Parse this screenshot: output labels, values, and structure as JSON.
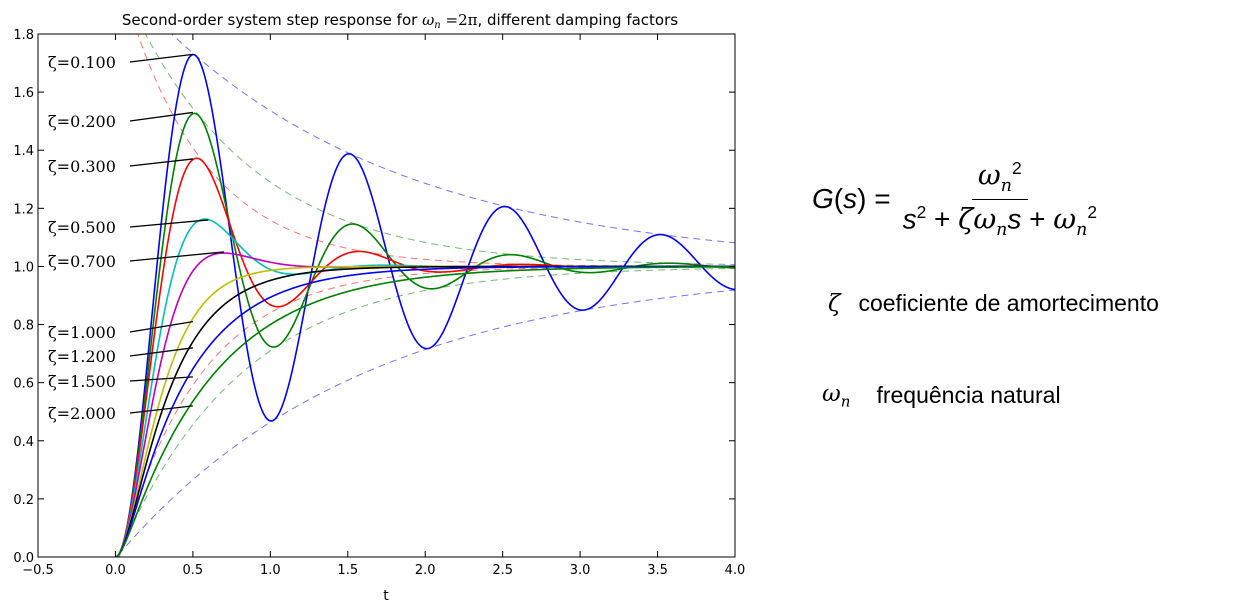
{
  "chart_data": {
    "type": "line",
    "title": "Second-order system step response for ωn = 2π, different damping factors",
    "title_parts": {
      "prefix": "Second-order system step response for ",
      "omega": "ω",
      "sub": "n",
      "eq": " =2π",
      "suffix": ", different damping factors"
    },
    "xlabel": "t",
    "ylabel": "",
    "xlim": [
      -0.5,
      4.0
    ],
    "ylim": [
      0.0,
      1.8
    ],
    "x_ticks": [
      "−0.5",
      "0.0",
      "0.5",
      "1.0",
      "1.5",
      "2.0",
      "2.5",
      "3.0",
      "3.5",
      "4.0"
    ],
    "y_ticks": [
      "0.0",
      "0.2",
      "0.4",
      "0.6",
      "0.8",
      "1.0",
      "1.2",
      "1.4",
      "1.6",
      "1.8"
    ],
    "grid": false,
    "omega_n": 6.283185,
    "series": [
      {
        "label": "ζ=0.100",
        "zeta": 0.1,
        "color": "#0000ff",
        "label_value": [
          0.5,
          1.73
        ]
      },
      {
        "label": "ζ=0.200",
        "zeta": 0.2,
        "color": "#008000",
        "label_value": [
          0.5,
          1.53
        ]
      },
      {
        "label": "ζ=0.300",
        "zeta": 0.3,
        "color": "#ff0000",
        "label_value": [
          0.5,
          1.37
        ]
      },
      {
        "label": "ζ=0.500",
        "zeta": 0.5,
        "color": "#00bfbf",
        "label_value": [
          0.6,
          1.16
        ]
      },
      {
        "label": "ζ=0.700",
        "zeta": 0.7,
        "color": "#bf00bf",
        "label_value": [
          0.7,
          1.05
        ]
      },
      {
        "label": "ζ=1.000",
        "zeta": 1.0,
        "color": "#bfbf00",
        "label_value": [
          0.5,
          0.81
        ]
      },
      {
        "label": "ζ=1.200",
        "zeta": 1.2,
        "color": "#000000",
        "label_value": [
          0.5,
          0.72
        ]
      },
      {
        "label": "ζ=1.500",
        "zeta": 1.5,
        "color": "#0000ff",
        "label_value": [
          0.5,
          0.62
        ]
      },
      {
        "label": "ζ=2.000",
        "zeta": 2.0,
        "color": "#008000",
        "label_value": [
          0.5,
          0.52
        ]
      }
    ],
    "envelopes": [
      {
        "zeta": 0.1,
        "color": "#0000ff"
      },
      {
        "zeta": 0.2,
        "color": "#008000"
      },
      {
        "zeta": 0.3,
        "color": "#ff0000"
      }
    ]
  },
  "formula": {
    "lhs": "G(s) =",
    "num_base": "ω",
    "num_sub": "n",
    "num_sup": "2",
    "den_s": "s",
    "den_s_sup": "2",
    "den_plus1": " + ",
    "den_zeta": "ζω",
    "den_zeta_sub": "n",
    "den_s2": "s",
    "den_plus2": " + ",
    "den_omega": "ω",
    "den_omega_sub": "n",
    "den_omega_sup": "2"
  },
  "legend": {
    "zeta_symbol": "ζ",
    "zeta_text": "coeficiente de amortecimento",
    "omega_symbol": "ω",
    "omega_sub": "n",
    "omega_text": "frequência natural"
  }
}
